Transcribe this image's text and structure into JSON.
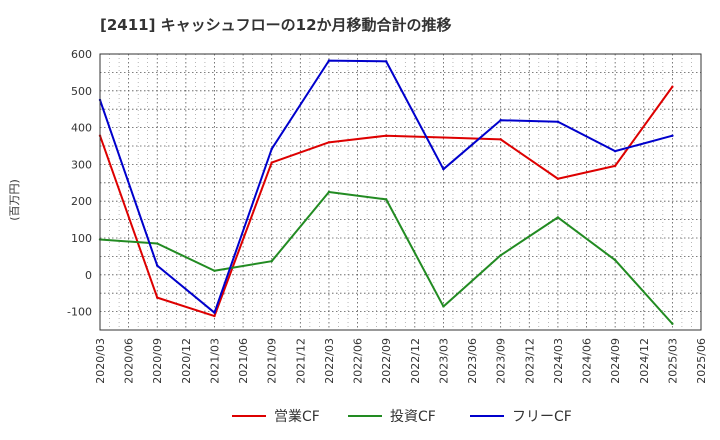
{
  "chart_data": {
    "type": "line",
    "title": "[2411]  キャッシュフローの12か月移動合計の推移",
    "ylabel": "(百万円)",
    "xlabel": "",
    "ylim": [
      -150,
      600
    ],
    "yticks": [
      600,
      500,
      400,
      300,
      200,
      100,
      0,
      -100
    ],
    "categories": [
      "2020/03",
      "2020/06",
      "2020/09",
      "2020/12",
      "2021/03",
      "2021/06",
      "2021/09",
      "2021/12",
      "2022/03",
      "2022/06",
      "2022/09",
      "2022/12",
      "2023/03",
      "2023/06",
      "2023/09",
      "2023/12",
      "2024/03",
      "2024/06",
      "2024/09",
      "2024/12",
      "2025/03",
      "2025/06"
    ],
    "grid": true,
    "legend_position": "bottom",
    "series": [
      {
        "name": "営業CF",
        "color": "#dd0000",
        "points": [
          [
            "2020/03",
            378
          ],
          [
            "2020/09",
            -62
          ],
          [
            "2021/03",
            -112
          ],
          [
            "2021/09",
            305
          ],
          [
            "2022/03",
            360
          ],
          [
            "2022/09",
            378
          ],
          [
            "2023/03",
            373
          ],
          [
            "2023/09",
            368
          ],
          [
            "2024/03",
            261
          ],
          [
            "2024/09",
            296
          ],
          [
            "2025/03",
            511
          ]
        ]
      },
      {
        "name": "投資CF",
        "color": "#228b22",
        "points": [
          [
            "2020/03",
            96
          ],
          [
            "2020/09",
            85
          ],
          [
            "2021/03",
            11
          ],
          [
            "2021/09",
            37
          ],
          [
            "2022/03",
            225
          ],
          [
            "2022/09",
            205
          ],
          [
            "2023/03",
            -86
          ],
          [
            "2023/09",
            53
          ],
          [
            "2024/03",
            156
          ],
          [
            "2024/09",
            40
          ],
          [
            "2025/03",
            -133
          ]
        ]
      },
      {
        "name": "フリーCF",
        "color": "#0000cc",
        "points": [
          [
            "2020/03",
            475
          ],
          [
            "2020/09",
            25
          ],
          [
            "2021/03",
            -103
          ],
          [
            "2021/09",
            342
          ],
          [
            "2022/03",
            582
          ],
          [
            "2022/09",
            580
          ],
          [
            "2023/03",
            287
          ],
          [
            "2023/09",
            420
          ],
          [
            "2024/03",
            416
          ],
          [
            "2024/09",
            336
          ],
          [
            "2025/03",
            378
          ]
        ]
      }
    ]
  }
}
